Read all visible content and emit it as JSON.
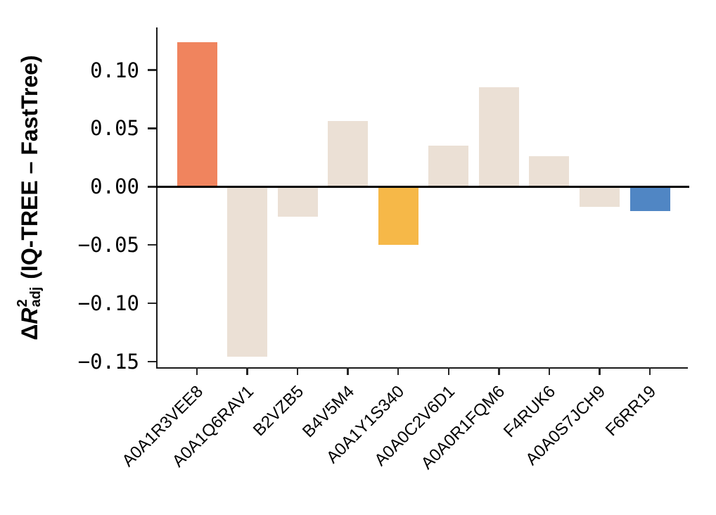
{
  "figure": {
    "background": "#ffffff",
    "y_axis_label": {
      "main": "Δ",
      "symbol": "R",
      "sup": "2",
      "sub": "adj",
      "rest": " (IQ-TREE – FastTree)"
    }
  },
  "chart_data": {
    "type": "bar",
    "title": "",
    "xlabel": "",
    "ylabel": "ΔR²_adj (IQ-TREE – FastTree)",
    "categories": [
      "A0A1R3VEE8",
      "A0A1Q6RAV1",
      "B2VZB5",
      "B4V5M4",
      "A0A1Y1S340",
      "A0A0C2V6D1",
      "A0A0R1FQM6",
      "F4RUK6",
      "A0A0S7JCH9",
      "F6RR19"
    ],
    "values": [
      0.124,
      -0.146,
      -0.026,
      0.056,
      -0.05,
      0.035,
      0.085,
      0.026,
      -0.017,
      -0.021
    ],
    "bar_colors": [
      "#F0845E",
      "#EBE0D5",
      "#EBE0D5",
      "#EBE0D5",
      "#F6B848",
      "#EBE0D5",
      "#EBE0D5",
      "#EBE0D5",
      "#EBE0D5",
      "#5086C4"
    ],
    "color_legend": {
      "positive_highlight": "#F0845E",
      "neutral": "#EBE0D5",
      "negative_highlight": "#F6B848",
      "final_highlight": "#5086C4"
    },
    "yticks": [
      0.1,
      0.05,
      0.0,
      -0.05,
      -0.1,
      -0.15
    ],
    "ytick_labels": [
      "0.10",
      "0.05",
      "0.00",
      "−0.05",
      "−0.10",
      "−0.15"
    ],
    "ylim": [
      -0.156,
      0.1365
    ],
    "zero_line": true,
    "grid": false,
    "legend": "none",
    "axis_color": "#1a1a1a"
  }
}
